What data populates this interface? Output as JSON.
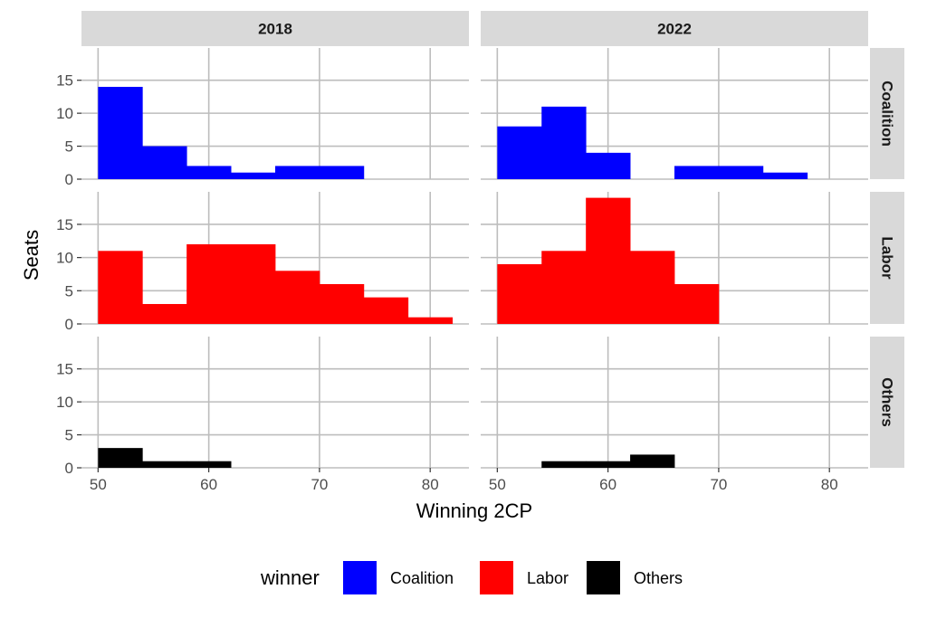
{
  "chart_data": {
    "type": "bar",
    "subtype": "faceted-histogram",
    "xlabel": "Winning 2CP",
    "ylabel": "Seats",
    "bin_width": 4,
    "x_ticks": [
      50,
      60,
      70,
      80
    ],
    "y_ticks": [
      0,
      5,
      10,
      15
    ],
    "xlim": [
      48.5,
      83.5
    ],
    "ylim": [
      0,
      19.9
    ],
    "grid": true,
    "legend_placement": "bottom",
    "legend": {
      "title": "winner",
      "items": [
        {
          "name": "Coalition",
          "color": "#0000ff"
        },
        {
          "name": "Labor",
          "color": "#ff0000"
        },
        {
          "name": "Others",
          "color": "#000000"
        }
      ]
    },
    "columns": [
      "2018",
      "2022"
    ],
    "rows": [
      "Coalition",
      "Labor",
      "Others"
    ],
    "panels": [
      {
        "column": "2018",
        "row": "Coalition",
        "color": "#0000ff",
        "bins": [
          {
            "x0": 50,
            "x1": 54,
            "count": 14
          },
          {
            "x0": 54,
            "x1": 58,
            "count": 5
          },
          {
            "x0": 58,
            "x1": 62,
            "count": 2
          },
          {
            "x0": 62,
            "x1": 66,
            "count": 1
          },
          {
            "x0": 66,
            "x1": 70,
            "count": 2
          },
          {
            "x0": 70,
            "x1": 74,
            "count": 2
          }
        ]
      },
      {
        "column": "2022",
        "row": "Coalition",
        "color": "#0000ff",
        "bins": [
          {
            "x0": 50,
            "x1": 54,
            "count": 8
          },
          {
            "x0": 54,
            "x1": 58,
            "count": 11
          },
          {
            "x0": 58,
            "x1": 62,
            "count": 4
          },
          {
            "x0": 66,
            "x1": 70,
            "count": 2
          },
          {
            "x0": 70,
            "x1": 74,
            "count": 2
          },
          {
            "x0": 74,
            "x1": 78,
            "count": 1
          }
        ]
      },
      {
        "column": "2018",
        "row": "Labor",
        "color": "#ff0000",
        "bins": [
          {
            "x0": 50,
            "x1": 54,
            "count": 11
          },
          {
            "x0": 54,
            "x1": 58,
            "count": 3
          },
          {
            "x0": 58,
            "x1": 62,
            "count": 12
          },
          {
            "x0": 62,
            "x1": 66,
            "count": 12
          },
          {
            "x0": 66,
            "x1": 70,
            "count": 8
          },
          {
            "x0": 70,
            "x1": 74,
            "count": 6
          },
          {
            "x0": 74,
            "x1": 78,
            "count": 4
          },
          {
            "x0": 78,
            "x1": 82,
            "count": 1
          }
        ]
      },
      {
        "column": "2022",
        "row": "Labor",
        "color": "#ff0000",
        "bins": [
          {
            "x0": 50,
            "x1": 54,
            "count": 9
          },
          {
            "x0": 54,
            "x1": 58,
            "count": 11
          },
          {
            "x0": 58,
            "x1": 62,
            "count": 19
          },
          {
            "x0": 62,
            "x1": 66,
            "count": 11
          },
          {
            "x0": 66,
            "x1": 70,
            "count": 6
          }
        ]
      },
      {
        "column": "2018",
        "row": "Others",
        "color": "#000000",
        "bins": [
          {
            "x0": 50,
            "x1": 54,
            "count": 3
          },
          {
            "x0": 54,
            "x1": 58,
            "count": 1
          },
          {
            "x0": 58,
            "x1": 62,
            "count": 1
          }
        ]
      },
      {
        "column": "2022",
        "row": "Others",
        "color": "#000000",
        "bins": [
          {
            "x0": 54,
            "x1": 58,
            "count": 1
          },
          {
            "x0": 58,
            "x1": 62,
            "count": 1
          },
          {
            "x0": 62,
            "x1": 66,
            "count": 2
          }
        ]
      }
    ]
  }
}
